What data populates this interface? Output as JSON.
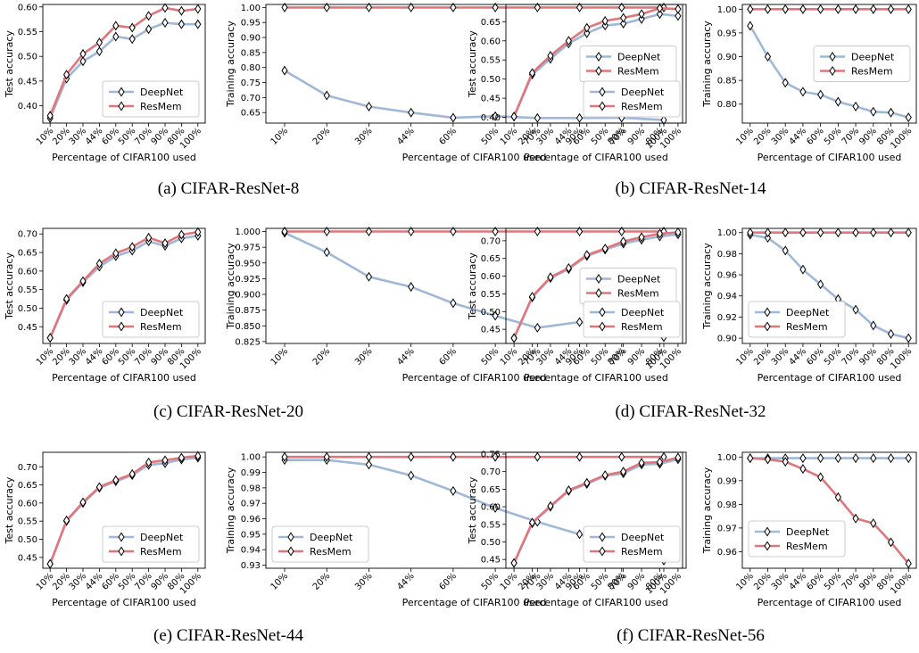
{
  "colors": {
    "deepnet": "#9fb8d8",
    "resmem": "#e0767a",
    "marker_fill": "#ffffff",
    "marker_edge": "#000000"
  },
  "legend_labels": [
    "DeepNet",
    "ResMem"
  ],
  "x_axis_label": "Percentage of CIFAR100 used",
  "x_tick_labels": [
    "10%",
    "20%",
    "30%",
    "44%",
    "60%",
    "50%",
    "70%",
    "90%",
    "80%",
    "100%"
  ],
  "chart_data": [
    {
      "panel": "a",
      "type": "line",
      "ylabel": "Test accuracy",
      "ylim": [
        0.365,
        0.605
      ],
      "yticks": [
        0.4,
        0.45,
        0.5,
        0.55,
        0.6
      ],
      "ytick_labels": [
        "0.40",
        "0.45",
        "0.50",
        "0.55",
        "0.60"
      ],
      "legend_loc": "lower-right",
      "series": [
        {
          "name": "DeepNet",
          "values": [
            0.375,
            0.455,
            0.49,
            0.51,
            0.54,
            0.535,
            0.555,
            0.568,
            0.565,
            0.565
          ]
        },
        {
          "name": "ResMem",
          "values": [
            0.38,
            0.463,
            0.505,
            0.528,
            0.562,
            0.558,
            0.582,
            0.598,
            0.592,
            0.596
          ]
        }
      ]
    },
    {
      "panel": "a",
      "type": "line",
      "ylabel": "Training accuracy",
      "ylim": [
        0.615,
        1.01
      ],
      "yticks": [
        0.65,
        0.7,
        0.75,
        0.8,
        0.85,
        0.9,
        0.95,
        1.0
      ],
      "ytick_labels": [
        "0.65",
        "0.70",
        "0.75",
        "0.80",
        "0.85",
        "0.90",
        "0.95",
        "1.00"
      ],
      "legend_loc": "center-right",
      "series": [
        {
          "name": "DeepNet",
          "values": [
            0.79,
            0.707,
            0.67,
            0.65,
            0.633,
            0.638,
            0.632,
            0.632,
            0.633,
            0.625
          ]
        },
        {
          "name": "ResMem",
          "values": [
            1.0,
            1.0,
            1.0,
            1.0,
            1.0,
            1.0,
            1.0,
            1.0,
            1.0,
            1.0
          ]
        }
      ]
    },
    {
      "panel": "b",
      "type": "line",
      "ylabel": "Test accuracy",
      "ylim": [
        0.385,
        0.695
      ],
      "yticks": [
        0.4,
        0.45,
        0.5,
        0.55,
        0.6,
        0.65
      ],
      "ytick_labels": [
        "0.40",
        "0.45",
        "0.50",
        "0.55",
        "0.60",
        "0.65"
      ],
      "legend_loc": "lower-right",
      "series": [
        {
          "name": "DeepNet",
          "values": [
            0.402,
            0.512,
            0.553,
            0.593,
            0.62,
            0.64,
            0.645,
            0.657,
            0.67,
            0.665
          ]
        },
        {
          "name": "ResMem",
          "values": [
            0.402,
            0.516,
            0.561,
            0.6,
            0.634,
            0.652,
            0.66,
            0.67,
            0.685,
            0.683
          ]
        }
      ]
    },
    {
      "panel": "b",
      "type": "line",
      "ylabel": "Training accuracy",
      "ylim": [
        0.76,
        1.01
      ],
      "yticks": [
        0.8,
        0.85,
        0.9,
        0.95,
        1.0
      ],
      "ytick_labels": [
        "0.80",
        "0.85",
        "0.90",
        "0.95",
        "1.00"
      ],
      "legend_loc": "center-right",
      "series": [
        {
          "name": "DeepNet",
          "values": [
            0.965,
            0.9,
            0.845,
            0.826,
            0.82,
            0.805,
            0.795,
            0.784,
            0.782,
            0.772
          ]
        },
        {
          "name": "ResMem",
          "values": [
            1.0,
            1.0,
            1.0,
            1.0,
            1.0,
            1.0,
            1.0,
            1.0,
            1.0,
            1.0
          ]
        }
      ]
    },
    {
      "panel": "c",
      "type": "line",
      "ylabel": "Test accuracy",
      "ylim": [
        0.405,
        0.715
      ],
      "yticks": [
        0.45,
        0.5,
        0.55,
        0.6,
        0.65,
        0.7
      ],
      "ytick_labels": [
        "0.45",
        "0.50",
        "0.55",
        "0.60",
        "0.65",
        "0.70"
      ],
      "legend_loc": "lower-right",
      "series": [
        {
          "name": "DeepNet",
          "values": [
            0.42,
            0.522,
            0.57,
            0.612,
            0.64,
            0.655,
            0.68,
            0.668,
            0.688,
            0.695
          ]
        },
        {
          "name": "ResMem",
          "values": [
            0.42,
            0.525,
            0.573,
            0.62,
            0.648,
            0.665,
            0.69,
            0.675,
            0.698,
            0.705
          ]
        }
      ]
    },
    {
      "panel": "c",
      "type": "line",
      "ylabel": "Training accuracy",
      "ylim": [
        0.822,
        1.005
      ],
      "yticks": [
        0.825,
        0.85,
        0.875,
        0.9,
        0.925,
        0.95,
        0.975,
        1.0
      ],
      "ytick_labels": [
        "0.825",
        "0.850",
        "0.875",
        "0.900",
        "0.925",
        "0.950",
        "0.975",
        "1.000"
      ],
      "legend_loc": "center-right",
      "series": [
        {
          "name": "DeepNet",
          "values": [
            0.998,
            0.967,
            0.928,
            0.912,
            0.886,
            0.866,
            0.847,
            0.856,
            0.84,
            0.832
          ]
        },
        {
          "name": "ResMem",
          "values": [
            1.0,
            1.0,
            1.0,
            1.0,
            1.0,
            1.0,
            1.0,
            1.0,
            1.0,
            1.0
          ]
        }
      ]
    },
    {
      "panel": "d",
      "type": "line",
      "ylabel": "Test accuracy",
      "ylim": [
        0.41,
        0.735
      ],
      "yticks": [
        0.45,
        0.5,
        0.55,
        0.6,
        0.65,
        0.7
      ],
      "ytick_labels": [
        "0.45",
        "0.50",
        "0.55",
        "0.60",
        "0.65",
        "0.70"
      ],
      "legend_loc": "lower-right",
      "series": [
        {
          "name": "DeepNet",
          "values": [
            0.425,
            0.54,
            0.595,
            0.62,
            0.657,
            0.675,
            0.692,
            0.703,
            0.712,
            0.718
          ]
        },
        {
          "name": "ResMem",
          "values": [
            0.425,
            0.542,
            0.597,
            0.623,
            0.66,
            0.678,
            0.698,
            0.71,
            0.72,
            0.724
          ]
        }
      ]
    },
    {
      "panel": "d",
      "type": "line",
      "ylabel": "Training accuracy",
      "ylim": [
        0.895,
        1.004
      ],
      "yticks": [
        0.9,
        0.92,
        0.94,
        0.96,
        0.98,
        1.0
      ],
      "ytick_labels": [
        "0.90",
        "0.92",
        "0.94",
        "0.96",
        "0.98",
        "1.00"
      ],
      "legend_loc": "lower-left",
      "series": [
        {
          "name": "DeepNet",
          "values": [
            0.998,
            0.995,
            0.983,
            0.965,
            0.951,
            0.937,
            0.927,
            0.912,
            0.904,
            0.9
          ]
        },
        {
          "name": "ResMem",
          "values": [
            1.0,
            1.0,
            1.0,
            1.0,
            1.0,
            1.0,
            1.0,
            1.0,
            1.0,
            1.0
          ]
        }
      ]
    },
    {
      "panel": "e",
      "type": "line",
      "ylabel": "Test accuracy",
      "ylim": [
        0.42,
        0.74
      ],
      "yticks": [
        0.45,
        0.5,
        0.55,
        0.6,
        0.65,
        0.7
      ],
      "ytick_labels": [
        "0.45",
        "0.50",
        "0.55",
        "0.60",
        "0.65",
        "0.70"
      ],
      "legend_loc": "lower-right",
      "series": [
        {
          "name": "DeepNet",
          "values": [
            0.432,
            0.55,
            0.6,
            0.642,
            0.66,
            0.677,
            0.705,
            0.71,
            0.72,
            0.725
          ]
        },
        {
          "name": "ResMem",
          "values": [
            0.432,
            0.552,
            0.602,
            0.644,
            0.663,
            0.68,
            0.712,
            0.718,
            0.725,
            0.73
          ]
        }
      ]
    },
    {
      "panel": "e",
      "type": "line",
      "ylabel": "Training accuracy",
      "ylim": [
        0.928,
        1.003
      ],
      "yticks": [
        0.93,
        0.94,
        0.95,
        0.96,
        0.97,
        0.98,
        0.99,
        1.0
      ],
      "ytick_labels": [
        "0.93",
        "0.94",
        "0.95",
        "0.96",
        "0.97",
        "0.98",
        "0.99",
        "1.00"
      ],
      "legend_loc": "lower-left",
      "series": [
        {
          "name": "DeepNet",
          "values": [
            0.998,
            0.998,
            0.995,
            0.988,
            0.978,
            0.967,
            0.958,
            0.95,
            0.941,
            0.933
          ]
        },
        {
          "name": "ResMem",
          "values": [
            1.0,
            1.0,
            1.0,
            1.0,
            1.0,
            1.0,
            1.0,
            1.0,
            1.0,
            1.0
          ]
        }
      ]
    },
    {
      "panel": "f",
      "type": "line",
      "ylabel": "Test accuracy",
      "ylim": [
        0.425,
        0.755
      ],
      "yticks": [
        0.45,
        0.5,
        0.55,
        0.6,
        0.65,
        0.7,
        0.75
      ],
      "ytick_labels": [
        "0.45",
        "0.50",
        "0.55",
        "0.60",
        "0.65",
        "0.70",
        "0.75"
      ],
      "legend_loc": "lower-right",
      "series": [
        {
          "name": "DeepNet",
          "values": [
            0.44,
            0.553,
            0.6,
            0.645,
            0.665,
            0.688,
            0.695,
            0.72,
            0.722,
            0.735
          ]
        },
        {
          "name": "ResMem",
          "values": [
            0.44,
            0.555,
            0.602,
            0.647,
            0.668,
            0.69,
            0.7,
            0.725,
            0.727,
            0.74
          ]
        }
      ]
    },
    {
      "panel": "f",
      "type": "line",
      "ylabel": "Training accuracy",
      "ylim": [
        0.953,
        1.002
      ],
      "yticks": [
        0.96,
        0.97,
        0.98,
        0.99,
        1.0
      ],
      "ytick_labels": [
        "0.96",
        "0.97",
        "0.98",
        "0.99",
        "1.00"
      ],
      "legend_loc": "center-left",
      "series": [
        {
          "name": "DeepNet",
          "values": [
            0.9995,
            0.9995,
            0.9995,
            0.9995,
            0.9995,
            0.9995,
            0.9995,
            0.9995,
            0.9995,
            0.9995
          ]
        },
        {
          "name": "ResMem",
          "values": [
            0.9995,
            0.999,
            0.998,
            0.995,
            0.9915,
            0.983,
            0.974,
            0.972,
            0.964,
            0.955
          ]
        }
      ]
    }
  ],
  "captions": [
    "(a)  CIFAR-ResNet-8",
    "(b)  CIFAR-ResNet-14",
    "(c)  CIFAR-ResNet-20",
    "(d)  CIFAR-ResNet-32",
    "(e)  CIFAR-ResNet-44",
    "(f)  CIFAR-ResNet-56"
  ]
}
